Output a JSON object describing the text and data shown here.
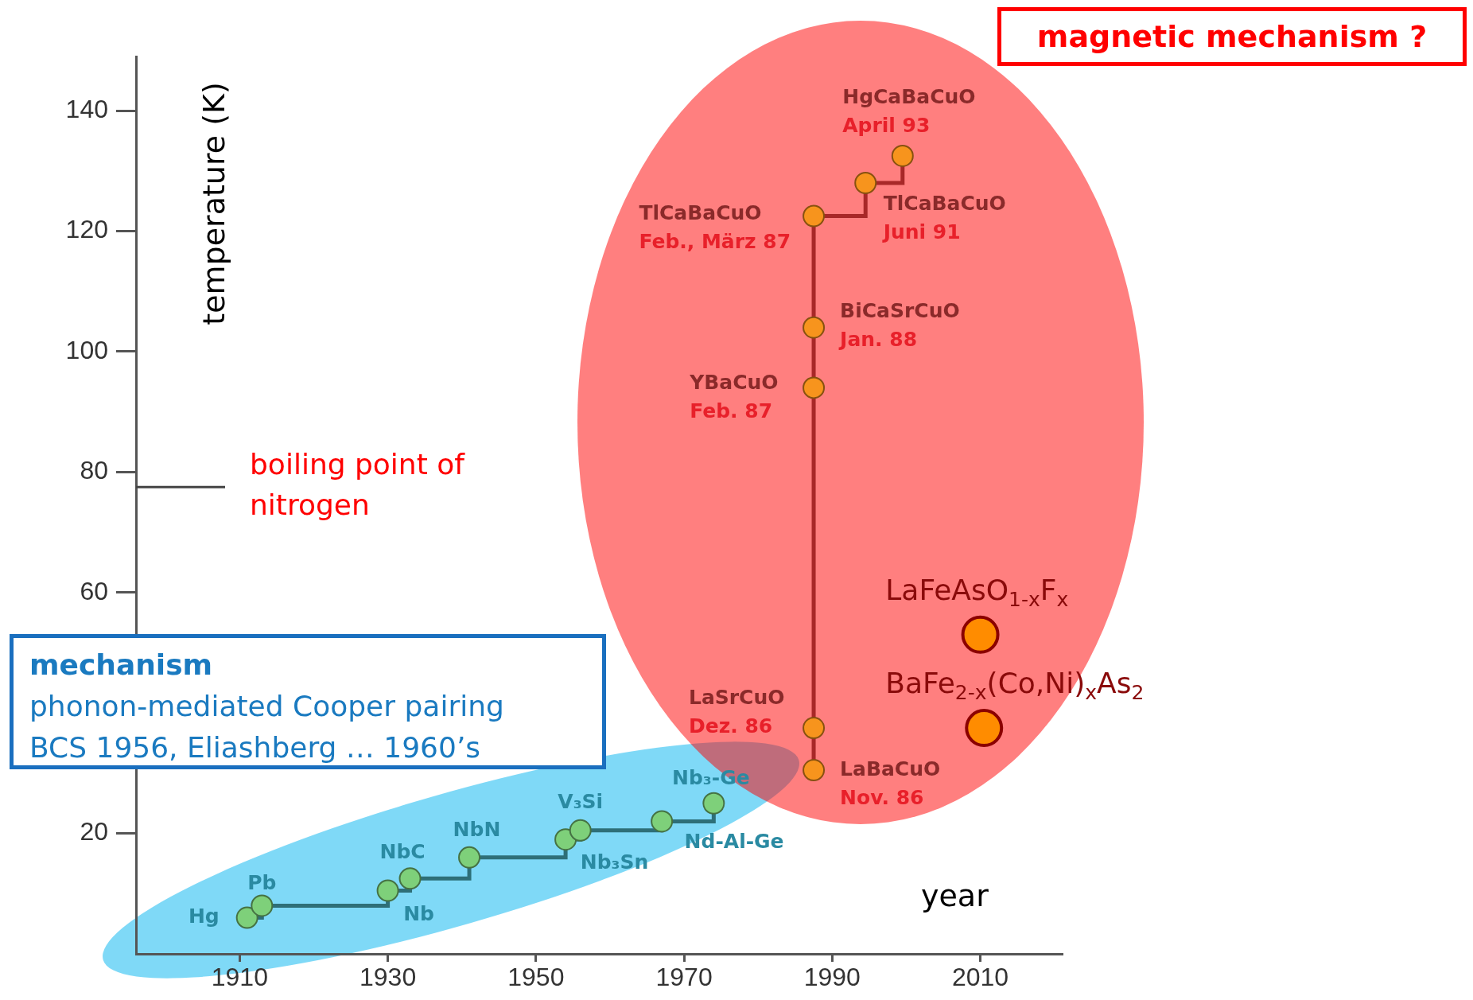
{
  "chart_data": {
    "type": "step",
    "xlabel": "year",
    "ylabel": "temperature (K)",
    "xlim": [
      1896,
      2021
    ],
    "xticks": [
      1910,
      1930,
      1950,
      1970,
      1990,
      2010
    ],
    "ylim": [
      0,
      149
    ],
    "yticks": [
      20,
      60,
      80,
      100,
      120,
      140
    ],
    "grid": false,
    "legend": false,
    "marker": "circle",
    "series": [
      {
        "x": [
          1911,
          1913,
          1930,
          1933,
          1941,
          1954,
          1956,
          1967,
          1974
        ],
        "values": [
          6,
          8,
          10.5,
          12.5,
          16,
          19,
          20.5,
          22,
          25
        ],
        "color": "#2e6f78",
        "colors": [
          "#7ed07a",
          "#7ed07a",
          "#7ed07a",
          "#7ed07a",
          "#7ed07a",
          "#7ed07a",
          "#7ed07a",
          "#7ed07a",
          "#7ed07a"
        ]
      },
      {
        "x": [
          1987.5,
          1987.5,
          1987.5,
          1987.5,
          1987.5,
          1994.5,
          1999.5
        ],
        "values": [
          30.5,
          37.5,
          94,
          104,
          122.5,
          128,
          132.5
        ],
        "color": "#a82828",
        "colors": [
          "#f7941d",
          "#f7941d",
          "#f7941d",
          "#f7941d",
          "#f7941d",
          "#f7941d",
          "#f7941d"
        ]
      },
      {
        "type": "scatter",
        "x": [
          2010,
          2010.5
        ],
        "values": [
          53,
          37.5
        ],
        "color": "#ff8c00"
      }
    ],
    "ref_lines": [
      {
        "axis": "y",
        "value": 77.5,
        "label": "boiling point of nitrogen",
        "color": "#444444"
      }
    ],
    "annotations": [
      "magnetic mechanism ?",
      "mechanism",
      "phonon-mediated Cooper pairing",
      "BCS 1956, Eliashberg … 1960’s",
      {
        "text": "Hg",
        "x": 1911,
        "y": 6
      },
      {
        "text": "Pb",
        "x": 1913,
        "y": 8
      },
      {
        "text": "Nb",
        "x": 1930,
        "y": 10.5
      },
      {
        "text": "NbC",
        "x": 1933,
        "y": 12.5
      },
      {
        "text": "NbN",
        "x": 1941,
        "y": 16
      },
      {
        "text": "Nb₃Sn",
        "x": 1954,
        "y": 19
      },
      {
        "text": "V₃Si",
        "x": 1956,
        "y": 20.5
      },
      {
        "text": "Nd-Al-Ge",
        "x": 1967,
        "y": 22
      },
      {
        "text": "Nb₃-Ge",
        "x": 1974,
        "y": 25
      },
      {
        "text": "LaBaCuO\nNov. 86",
        "x": 1987.5,
        "y": 30.5
      },
      {
        "text": "LaSrCuO\nDez. 86",
        "x": 1987.5,
        "y": 37.5
      },
      {
        "text": "YBaCuO\nFeb. 87",
        "x": 1987.5,
        "y": 94
      },
      {
        "text": "BiCaSrCuO\nJan. 88",
        "x": 1987.5,
        "y": 104
      },
      {
        "text": "TlCaBaCuO\nFeb., März 87",
        "x": 1987.5,
        "y": 122.5
      },
      {
        "text": "TlCaBaCuO\nJuni 91",
        "x": 1994.5,
        "y": 128
      },
      {
        "text": "HgCaBaCuO\nApril 93",
        "x": 1999.5,
        "y": 132.5
      },
      {
        "text": "LaFeAsO$_{1-x}$F$_{x}$",
        "x": 2010,
        "y": 53
      },
      {
        "text": "BaFe$_{2-x}$(Co,Ni)$_{x}$As$_{2}$",
        "x": 2010.5,
        "y": 37.5
      }
    ]
  }
}
